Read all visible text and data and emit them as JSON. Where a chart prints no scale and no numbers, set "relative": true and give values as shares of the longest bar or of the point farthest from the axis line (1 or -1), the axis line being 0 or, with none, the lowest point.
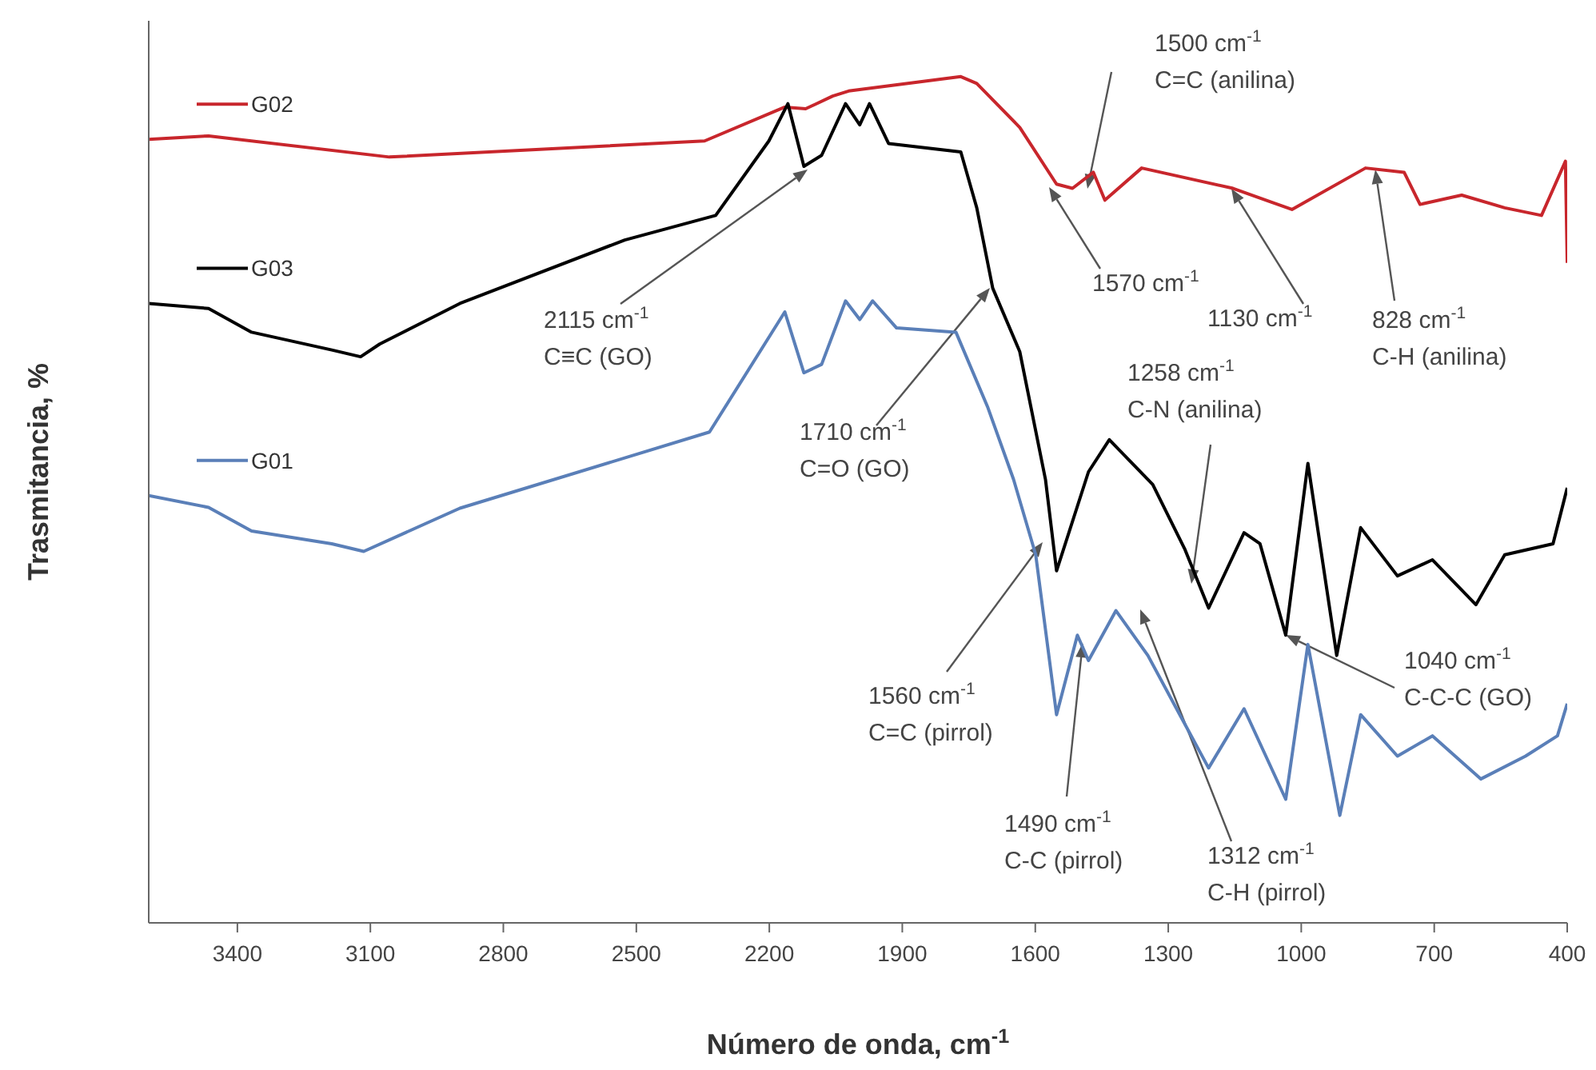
{
  "chart_data": {
    "type": "line",
    "relative": true,
    "xlabel": "Número de onda, cm$^{-1}$",
    "ylabel": "Trasmitancia, %",
    "xlim": [
      3600,
      400
    ],
    "xticks": [
      3400,
      3100,
      2800,
      2500,
      2200,
      1900,
      1600,
      1300,
      1000,
      700,
      400
    ],
    "legend": "top left",
    "grid": false,
    "marker": "none",
    "line_style": "solid",
    "series": [
      {
        "name": "G02",
        "color": "#c8262c",
        "x": [
          3600,
          3465,
          3057,
          2346,
          2165,
          2118,
          2057,
          2021,
          1768,
          1732,
          1635,
          1552,
          1516,
          1469,
          1443,
          1360,
          1154,
          1021,
          855,
          768,
          732,
          638,
          541,
          458,
          404,
          400
        ],
        "values": [
          0.926,
          0.93,
          0.905,
          0.924,
          0.964,
          0.962,
          0.977,
          0.983,
          1,
          0.992,
          0.94,
          0.873,
          0.868,
          0.887,
          0.854,
          0.892,
          0.868,
          0.843,
          0.892,
          0.887,
          0.849,
          0.86,
          0.845,
          0.836,
          0.9,
          0.78
        ]
      },
      {
        "name": "G03",
        "color": "#000000",
        "x": [
          3600,
          3465,
          3368,
          3187,
          3122,
          3079,
          2898,
          2526,
          2321,
          2201,
          2158,
          2122,
          2082,
          2028,
          1996,
          1974,
          1931,
          1768,
          1732,
          1696,
          1635,
          1577,
          1552,
          1480,
          1433,
          1335,
          1263,
          1209,
          1129,
          1093,
          1035,
          985,
          920,
          866,
          783,
          704,
          606,
          541,
          432,
          400
        ],
        "values": [
          0.732,
          0.726,
          0.698,
          0.677,
          0.669,
          0.684,
          0.732,
          0.807,
          0.836,
          0.924,
          0.968,
          0.894,
          0.907,
          0.968,
          0.943,
          0.968,
          0.921,
          0.911,
          0.845,
          0.75,
          0.675,
          0.524,
          0.416,
          0.533,
          0.571,
          0.518,
          0.442,
          0.372,
          0.461,
          0.448,
          0.34,
          0.543,
          0.316,
          0.467,
          0.41,
          0.429,
          0.376,
          0.435,
          0.448,
          0.514
        ]
      },
      {
        "name": "G01",
        "color": "#5a7fb8",
        "x": [
          3600,
          3465,
          3368,
          3187,
          3115,
          2898,
          2335,
          2165,
          2122,
          2082,
          2028,
          1996,
          1967,
          1913,
          1779,
          1707,
          1649,
          1599,
          1552,
          1505,
          1480,
          1418,
          1346,
          1274,
          1209,
          1129,
          1035,
          985,
          913,
          866,
          783,
          704,
          595,
          494,
          422,
          400
        ],
        "values": [
          0.505,
          0.491,
          0.463,
          0.448,
          0.439,
          0.49,
          0.58,
          0.722,
          0.65,
          0.66,
          0.735,
          0.713,
          0.735,
          0.703,
          0.698,
          0.609,
          0.524,
          0.435,
          0.246,
          0.34,
          0.31,
          0.369,
          0.316,
          0.246,
          0.183,
          0.253,
          0.146,
          0.329,
          0.127,
          0.246,
          0.197,
          0.221,
          0.17,
          0.197,
          0.221,
          0.259
        ]
      }
    ],
    "annotations": [
      "1500 cm$^{-1}$",
      "C=C (anilina)",
      "1570 cm$^{-1}$",
      "1130 cm$^{-1}$",
      "828 cm$^{-1}$",
      "C-H (anilina)",
      "2115 cm$^{-1}$",
      "C≡C (GO)",
      "1710 cm$^{-1}$",
      "C=O (GO)",
      "1258 cm$^{-1}$",
      "C-N (anilina)",
      "1560 cm$^{-1}$",
      "C=C (pirrol)",
      "1490 cm$^{-1}$",
      "C-C (pirrol)",
      "1312 cm$^{-1}$",
      "C-H (pirrol)",
      "1040 cm$^{-1}$",
      "C-C-C (GO)"
    ]
  }
}
